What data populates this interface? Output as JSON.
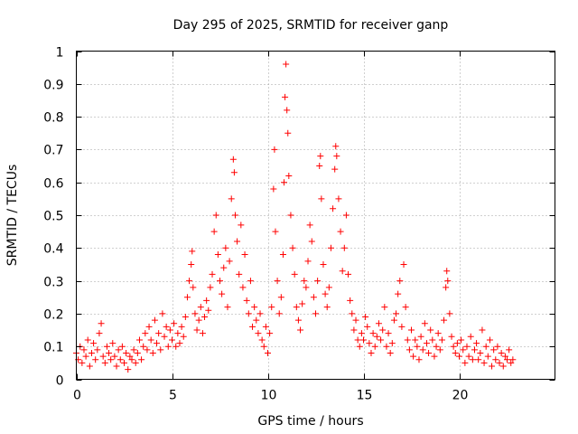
{
  "chart_data": {
    "type": "scatter",
    "title": "Day 295 of 2025, SRMTID for receiver ganp",
    "xlabel": "GPS time / hours",
    "ylabel": "SRMTID / TECUs",
    "xlim": [
      0,
      25
    ],
    "ylim": [
      0,
      1
    ],
    "xticks": [
      0,
      5,
      10,
      15,
      20
    ],
    "xtick_labels": [
      "0",
      "5",
      "10",
      "15",
      "20"
    ],
    "yticks": [
      0,
      0.1,
      0.2,
      0.3,
      0.4,
      0.5,
      0.6,
      0.7,
      0.8,
      0.9,
      1
    ],
    "ytick_labels": [
      "0",
      "0.1",
      "0.2",
      "0.3",
      "0.4",
      "0.5",
      "0.6",
      "0.7",
      "0.8",
      "0.9",
      "1"
    ],
    "grid": true,
    "marker": "+",
    "color": "#ff0000",
    "series": [
      {
        "name": "SRMTID",
        "points": [
          [
            0.0,
            0.08
          ],
          [
            0.1,
            0.06
          ],
          [
            0.2,
            0.1
          ],
          [
            0.3,
            0.05
          ],
          [
            0.4,
            0.09
          ],
          [
            0.5,
            0.07
          ],
          [
            0.6,
            0.12
          ],
          [
            0.7,
            0.04
          ],
          [
            0.8,
            0.08
          ],
          [
            0.9,
            0.11
          ],
          [
            1.0,
            0.06
          ],
          [
            1.1,
            0.09
          ],
          [
            1.2,
            0.14
          ],
          [
            1.3,
            0.17
          ],
          [
            1.4,
            0.07
          ],
          [
            1.5,
            0.05
          ],
          [
            1.6,
            0.1
          ],
          [
            1.7,
            0.08
          ],
          [
            1.8,
            0.06
          ],
          [
            1.9,
            0.11
          ],
          [
            2.0,
            0.07
          ],
          [
            2.1,
            0.04
          ],
          [
            2.2,
            0.09
          ],
          [
            2.3,
            0.06
          ],
          [
            2.4,
            0.1
          ],
          [
            2.5,
            0.05
          ],
          [
            2.6,
            0.08
          ],
          [
            2.7,
            0.03
          ],
          [
            2.8,
            0.07
          ],
          [
            2.9,
            0.06
          ],
          [
            3.0,
            0.09
          ],
          [
            3.1,
            0.05
          ],
          [
            3.2,
            0.08
          ],
          [
            3.3,
            0.12
          ],
          [
            3.4,
            0.06
          ],
          [
            3.5,
            0.1
          ],
          [
            3.6,
            0.14
          ],
          [
            3.7,
            0.09
          ],
          [
            3.8,
            0.16
          ],
          [
            3.9,
            0.12
          ],
          [
            4.0,
            0.08
          ],
          [
            4.1,
            0.18
          ],
          [
            4.2,
            0.11
          ],
          [
            4.3,
            0.14
          ],
          [
            4.4,
            0.09
          ],
          [
            4.5,
            0.2
          ],
          [
            4.6,
            0.13
          ],
          [
            4.7,
            0.16
          ],
          [
            4.8,
            0.1
          ],
          [
            4.9,
            0.15
          ],
          [
            5.0,
            0.12
          ],
          [
            5.1,
            0.17
          ],
          [
            5.2,
            0.1
          ],
          [
            5.3,
            0.14
          ],
          [
            5.4,
            0.11
          ],
          [
            5.5,
            0.16
          ],
          [
            5.6,
            0.13
          ],
          [
            5.7,
            0.19
          ],
          [
            5.8,
            0.25
          ],
          [
            5.9,
            0.3
          ],
          [
            6.0,
            0.35
          ],
          [
            6.05,
            0.39
          ],
          [
            6.1,
            0.28
          ],
          [
            6.2,
            0.2
          ],
          [
            6.3,
            0.15
          ],
          [
            6.4,
            0.18
          ],
          [
            6.5,
            0.22
          ],
          [
            6.6,
            0.14
          ],
          [
            6.7,
            0.19
          ],
          [
            6.8,
            0.24
          ],
          [
            6.9,
            0.21
          ],
          [
            7.0,
            0.28
          ],
          [
            7.1,
            0.32
          ],
          [
            7.2,
            0.45
          ],
          [
            7.3,
            0.5
          ],
          [
            7.4,
            0.38
          ],
          [
            7.5,
            0.3
          ],
          [
            7.6,
            0.26
          ],
          [
            7.7,
            0.34
          ],
          [
            7.8,
            0.4
          ],
          [
            7.9,
            0.22
          ],
          [
            8.0,
            0.36
          ],
          [
            8.1,
            0.55
          ],
          [
            8.2,
            0.67
          ],
          [
            8.25,
            0.63
          ],
          [
            8.3,
            0.5
          ],
          [
            8.4,
            0.42
          ],
          [
            8.5,
            0.32
          ],
          [
            8.6,
            0.47
          ],
          [
            8.7,
            0.28
          ],
          [
            8.8,
            0.38
          ],
          [
            8.9,
            0.24
          ],
          [
            9.0,
            0.2
          ],
          [
            9.1,
            0.3
          ],
          [
            9.2,
            0.16
          ],
          [
            9.3,
            0.22
          ],
          [
            9.4,
            0.18
          ],
          [
            9.5,
            0.14
          ],
          [
            9.6,
            0.2
          ],
          [
            9.7,
            0.12
          ],
          [
            9.8,
            0.1
          ],
          [
            9.9,
            0.16
          ],
          [
            10.0,
            0.08
          ],
          [
            10.1,
            0.14
          ],
          [
            10.2,
            0.22
          ],
          [
            10.3,
            0.58
          ],
          [
            10.35,
            0.7
          ],
          [
            10.4,
            0.45
          ],
          [
            10.5,
            0.3
          ],
          [
            10.6,
            0.2
          ],
          [
            10.7,
            0.25
          ],
          [
            10.8,
            0.38
          ],
          [
            10.85,
            0.6
          ],
          [
            10.9,
            0.86
          ],
          [
            10.95,
            0.96
          ],
          [
            11.0,
            0.82
          ],
          [
            11.05,
            0.75
          ],
          [
            11.1,
            0.62
          ],
          [
            11.2,
            0.5
          ],
          [
            11.3,
            0.4
          ],
          [
            11.4,
            0.32
          ],
          [
            11.5,
            0.22
          ],
          [
            11.6,
            0.18
          ],
          [
            11.7,
            0.15
          ],
          [
            11.8,
            0.23
          ],
          [
            11.9,
            0.3
          ],
          [
            12.0,
            0.28
          ],
          [
            12.1,
            0.36
          ],
          [
            12.2,
            0.47
          ],
          [
            12.3,
            0.42
          ],
          [
            12.4,
            0.25
          ],
          [
            12.5,
            0.2
          ],
          [
            12.6,
            0.3
          ],
          [
            12.7,
            0.65
          ],
          [
            12.75,
            0.68
          ],
          [
            12.8,
            0.55
          ],
          [
            12.9,
            0.35
          ],
          [
            13.0,
            0.26
          ],
          [
            13.1,
            0.22
          ],
          [
            13.2,
            0.28
          ],
          [
            13.3,
            0.4
          ],
          [
            13.4,
            0.52
          ],
          [
            13.5,
            0.64
          ],
          [
            13.55,
            0.71
          ],
          [
            13.6,
            0.68
          ],
          [
            13.7,
            0.55
          ],
          [
            13.8,
            0.45
          ],
          [
            13.9,
            0.33
          ],
          [
            14.0,
            0.4
          ],
          [
            14.1,
            0.5
          ],
          [
            14.2,
            0.32
          ],
          [
            14.3,
            0.24
          ],
          [
            14.4,
            0.2
          ],
          [
            14.5,
            0.15
          ],
          [
            14.6,
            0.18
          ],
          [
            14.7,
            0.12
          ],
          [
            14.8,
            0.1
          ],
          [
            14.9,
            0.14
          ],
          [
            15.0,
            0.12
          ],
          [
            15.1,
            0.19
          ],
          [
            15.2,
            0.16
          ],
          [
            15.3,
            0.11
          ],
          [
            15.4,
            0.08
          ],
          [
            15.5,
            0.14
          ],
          [
            15.6,
            0.1
          ],
          [
            15.7,
            0.13
          ],
          [
            15.8,
            0.17
          ],
          [
            15.9,
            0.12
          ],
          [
            16.0,
            0.15
          ],
          [
            16.1,
            0.22
          ],
          [
            16.2,
            0.1
          ],
          [
            16.3,
            0.14
          ],
          [
            16.4,
            0.08
          ],
          [
            16.5,
            0.11
          ],
          [
            16.6,
            0.18
          ],
          [
            16.7,
            0.2
          ],
          [
            16.8,
            0.26
          ],
          [
            16.9,
            0.3
          ],
          [
            17.0,
            0.16
          ],
          [
            17.1,
            0.35
          ],
          [
            17.2,
            0.22
          ],
          [
            17.3,
            0.12
          ],
          [
            17.4,
            0.09
          ],
          [
            17.5,
            0.15
          ],
          [
            17.6,
            0.07
          ],
          [
            17.7,
            0.12
          ],
          [
            17.8,
            0.1
          ],
          [
            17.9,
            0.06
          ],
          [
            18.0,
            0.13
          ],
          [
            18.1,
            0.09
          ],
          [
            18.2,
            0.17
          ],
          [
            18.3,
            0.11
          ],
          [
            18.4,
            0.08
          ],
          [
            18.5,
            0.15
          ],
          [
            18.6,
            0.12
          ],
          [
            18.7,
            0.07
          ],
          [
            18.8,
            0.1
          ],
          [
            18.9,
            0.14
          ],
          [
            19.0,
            0.09
          ],
          [
            19.1,
            0.12
          ],
          [
            19.2,
            0.18
          ],
          [
            19.3,
            0.28
          ],
          [
            19.35,
            0.33
          ],
          [
            19.4,
            0.3
          ],
          [
            19.5,
            0.2
          ],
          [
            19.6,
            0.13
          ],
          [
            19.7,
            0.1
          ],
          [
            19.8,
            0.08
          ],
          [
            19.9,
            0.11
          ],
          [
            20.0,
            0.07
          ],
          [
            20.1,
            0.12
          ],
          [
            20.2,
            0.09
          ],
          [
            20.3,
            0.05
          ],
          [
            20.4,
            0.1
          ],
          [
            20.5,
            0.07
          ],
          [
            20.6,
            0.13
          ],
          [
            20.7,
            0.06
          ],
          [
            20.8,
            0.09
          ],
          [
            20.9,
            0.11
          ],
          [
            21.0,
            0.06
          ],
          [
            21.1,
            0.08
          ],
          [
            21.2,
            0.15
          ],
          [
            21.3,
            0.05
          ],
          [
            21.4,
            0.1
          ],
          [
            21.5,
            0.07
          ],
          [
            21.6,
            0.12
          ],
          [
            21.7,
            0.04
          ],
          [
            21.8,
            0.09
          ],
          [
            21.9,
            0.06
          ],
          [
            22.0,
            0.1
          ],
          [
            22.1,
            0.05
          ],
          [
            22.2,
            0.08
          ],
          [
            22.3,
            0.04
          ],
          [
            22.4,
            0.07
          ],
          [
            22.5,
            0.06
          ],
          [
            22.6,
            0.09
          ],
          [
            22.7,
            0.05
          ],
          [
            22.8,
            0.06
          ]
        ]
      }
    ]
  }
}
